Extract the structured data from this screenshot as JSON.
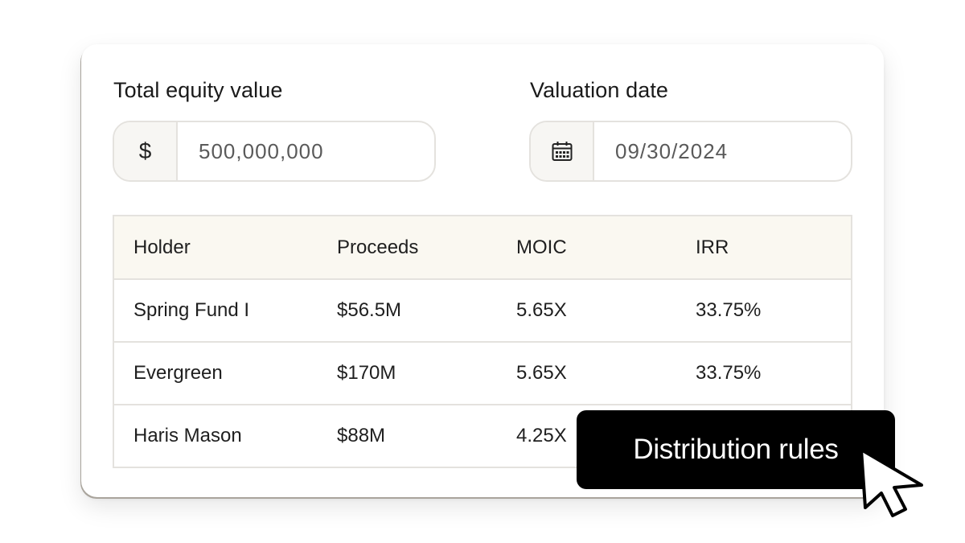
{
  "equity": {
    "label": "Total equity value",
    "currency_symbol": "$",
    "value": "500,000,000"
  },
  "valuation": {
    "label": "Valuation date",
    "icon": "calendar-icon",
    "value": "09/30/2024"
  },
  "table": {
    "headers": [
      "Holder",
      "Proceeds",
      "MOIC",
      "IRR"
    ],
    "rows": [
      [
        "Spring Fund I",
        "$56.5M",
        "5.65X",
        "33.75%"
      ],
      [
        "Evergreen",
        "$170M",
        "5.65X",
        "33.75%"
      ],
      [
        "Haris Mason",
        "$88M",
        "4.25X",
        ""
      ]
    ]
  },
  "tooltip": {
    "label": "Distribution rules"
  },
  "colors": {
    "header_bg": "#faf8f1",
    "border": "#e4e2de",
    "addon_bg": "#f7f6f3",
    "tooltip_bg": "#000000"
  }
}
